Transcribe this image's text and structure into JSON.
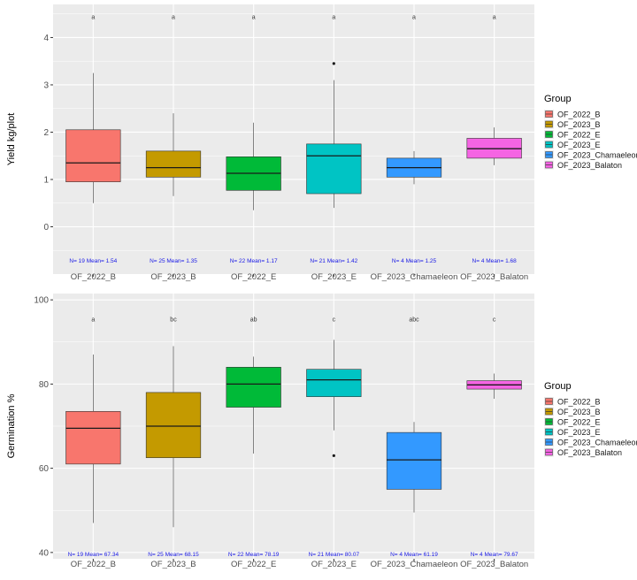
{
  "chart_data": [
    {
      "type": "boxplot",
      "ylabel": "Yield kg/plot",
      "xlabel": "",
      "ylim": [
        -1.0,
        4.7
      ],
      "yticks": [
        0,
        1,
        2,
        3,
        4
      ],
      "yticklabels": [
        "0",
        "1",
        "2",
        "3",
        "4"
      ],
      "grid": true,
      "legend": {
        "title": "Group",
        "position": "right",
        "entries": [
          "OF_2022_B",
          "OF_2023_B",
          "OF_2022_E",
          "OF_2023_E",
          "OF_2023_Chamaeleon",
          "OF_2023_Balaton"
        ]
      },
      "categories": [
        "OF_2022_B",
        "OF_2023_B",
        "OF_2022_E",
        "OF_2023_E",
        "OF_2023_Chamaeleon",
        "OF_2023_Balaton"
      ],
      "boxes": [
        {
          "min": 0.5,
          "q1": 0.95,
          "median": 1.35,
          "q3": 2.05,
          "max": 3.25,
          "outliers": [],
          "letter": "a",
          "summary": "N= 19 Mean= 1.54"
        },
        {
          "min": 0.65,
          "q1": 1.05,
          "median": 1.25,
          "q3": 1.6,
          "max": 2.4,
          "outliers": [],
          "letter": "a",
          "summary": "N= 25 Mean= 1.35"
        },
        {
          "min": 0.35,
          "q1": 0.77,
          "median": 1.13,
          "q3": 1.48,
          "max": 2.2,
          "outliers": [],
          "letter": "a",
          "summary": "N= 22 Mean= 1.17"
        },
        {
          "min": 0.4,
          "q1": 0.7,
          "median": 1.5,
          "q3": 1.75,
          "max": 3.1,
          "outliers": [
            3.45
          ],
          "letter": "a",
          "summary": "N= 21 Mean= 1.42"
        },
        {
          "min": 0.9,
          "q1": 1.05,
          "median": 1.25,
          "q3": 1.45,
          "max": 1.6,
          "outliers": [],
          "letter": "a",
          "summary": "N= 4 Mean= 1.25"
        },
        {
          "min": 1.3,
          "q1": 1.45,
          "median": 1.65,
          "q3": 1.87,
          "max": 2.1,
          "outliers": [],
          "letter": "a",
          "summary": "N= 4 Mean= 1.68"
        }
      ],
      "letter_y": 4.45,
      "summary_y": -0.7
    },
    {
      "type": "boxplot",
      "ylabel": "Germination %",
      "xlabel": "",
      "ylim": [
        38.5,
        101.5
      ],
      "yticks": [
        40,
        60,
        80,
        100
      ],
      "yticklabels": [
        "40",
        "60",
        "80",
        "100"
      ],
      "grid": true,
      "legend": {
        "title": "Group",
        "position": "right",
        "entries": [
          "OF_2022_B",
          "OF_2023_B",
          "OF_2022_E",
          "OF_2023_E",
          "OF_2023_Chamaeleon",
          "OF_2023_Balaton"
        ]
      },
      "categories": [
        "OF_2022_B",
        "OF_2023_B",
        "OF_2022_E",
        "OF_2023_E",
        "OF_2023_Chamaeleon",
        "OF_2023_Balaton"
      ],
      "boxes": [
        {
          "min": 47,
          "q1": 61,
          "median": 69.5,
          "q3": 73.5,
          "max": 87,
          "outliers": [],
          "letter": "a",
          "summary": "N= 19 Mean= 67.34"
        },
        {
          "min": 46,
          "q1": 62.5,
          "median": 70,
          "q3": 78,
          "max": 89,
          "outliers": [],
          "letter": "bc",
          "summary": "N= 25 Mean= 68.15"
        },
        {
          "min": 63.5,
          "q1": 74.5,
          "median": 80,
          "q3": 84,
          "max": 86.5,
          "outliers": [],
          "letter": "ab",
          "summary": "N= 22 Mean= 78.19"
        },
        {
          "min": 69,
          "q1": 77,
          "median": 81,
          "q3": 83.5,
          "max": 90.5,
          "outliers": [
            63
          ],
          "letter": "c",
          "summary": "N= 21 Mean= 80.07"
        },
        {
          "min": 49.5,
          "q1": 55,
          "median": 62,
          "q3": 68.5,
          "max": 71,
          "outliers": [],
          "letter": "abc",
          "summary": "N= 4 Mean= 61.19"
        },
        {
          "min": 76.5,
          "q1": 78.8,
          "median": 79.8,
          "q3": 80.8,
          "max": 82.5,
          "outliers": [],
          "letter": "c",
          "summary": "N= 4 Mean= 79.67"
        }
      ],
      "letter_y": 95.5,
      "summary_y": 39.8
    }
  ],
  "colors": {
    "groups": [
      "#F8766D",
      "#C49A00",
      "#00BA38",
      "#00C4C4",
      "#3399FF",
      "#F564E3"
    ],
    "panel_bg": "#EBEBEB",
    "grid": "#FFFFFF",
    "summary_text": "#1A1AE6",
    "axis_text": "#4D4D4D"
  }
}
